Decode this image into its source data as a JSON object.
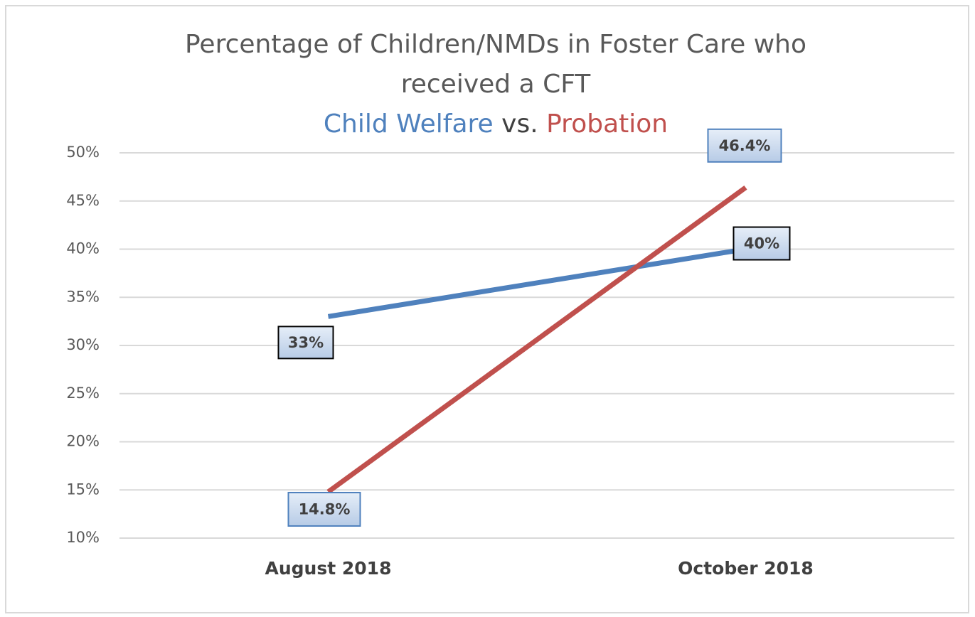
{
  "chart_data": {
    "type": "line",
    "title_lines": [
      "Percentage of Children/NMDs in Foster Care who",
      "received a CFT"
    ],
    "legend_separator": "vs.",
    "categories": [
      "August 2018",
      "October 2018"
    ],
    "series": [
      {
        "name": "Child Welfare",
        "color": "#4f81bd",
        "values": [
          33,
          40
        ],
        "value_labels": [
          "33%",
          "40%"
        ]
      },
      {
        "name": "Probation",
        "color": "#c0504d",
        "values": [
          14.8,
          46.4
        ],
        "value_labels": [
          "14.8%",
          "46.4%"
        ]
      }
    ],
    "ylim": [
      10,
      50
    ],
    "yticks": [
      {
        "value": 10,
        "label": "10%"
      },
      {
        "value": 15,
        "label": "15%"
      },
      {
        "value": 20,
        "label": "20%"
      },
      {
        "value": 25,
        "label": "25%"
      },
      {
        "value": 30,
        "label": "30%"
      },
      {
        "value": 35,
        "label": "35%"
      },
      {
        "value": 40,
        "label": "40%"
      },
      {
        "value": 45,
        "label": "45%"
      },
      {
        "value": 50,
        "label": "50%"
      }
    ],
    "grid": true
  }
}
